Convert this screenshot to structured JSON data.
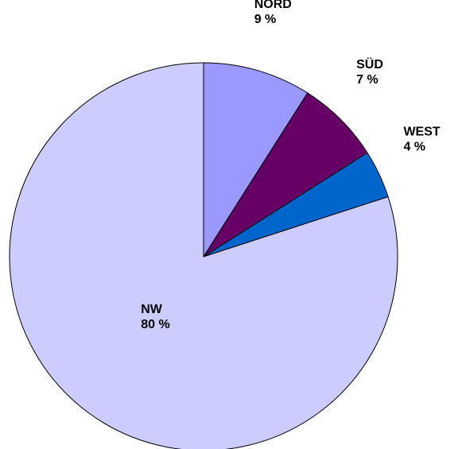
{
  "chart_data": {
    "type": "pie",
    "categories": [
      "NORD",
      "SÜD",
      "WEST",
      "NW"
    ],
    "values": [
      9,
      7,
      4,
      80
    ],
    "value_labels": [
      "9 %",
      "7 %",
      "4 %",
      "80 %"
    ],
    "colors": [
      "#9999ff",
      "#660066",
      "#0066cc",
      "#ccccff"
    ]
  }
}
